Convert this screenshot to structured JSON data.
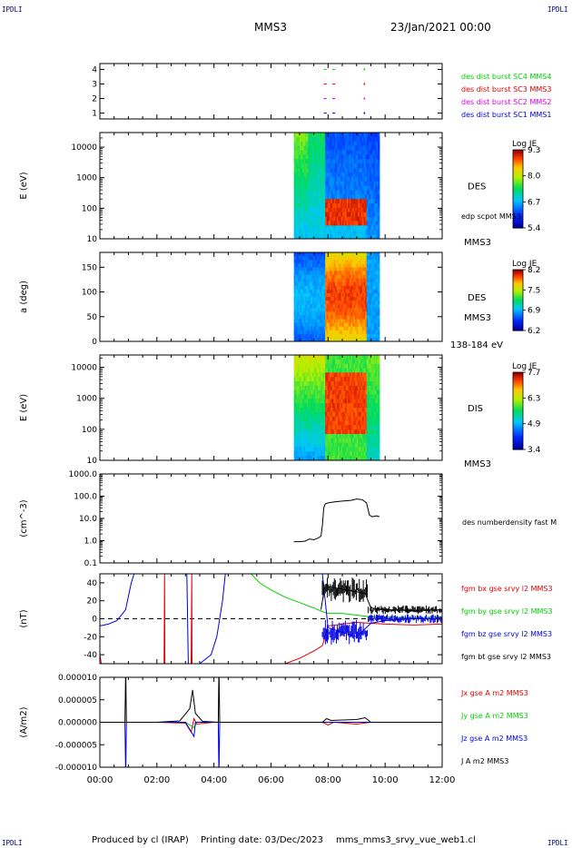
{
  "header": {
    "corner_label": "IPDLI",
    "mission": "MMS3",
    "date": "23/Jan/2021 00:00"
  },
  "footer": {
    "producer": "Produced by cl (IRAP)",
    "printing_date": "Printing date: 03/Dec/2023",
    "filename": "mms_mms3_srvy_vue_web1.cl"
  },
  "time_axis": {
    "range_hours": [
      0,
      12
    ],
    "tick_labels": [
      "00:00",
      "02:00",
      "04:00",
      "06:00",
      "08:00",
      "10:00",
      "12:00"
    ]
  },
  "colors": {
    "black": "#000000",
    "red": "#e00000",
    "green": "#00d000",
    "blue": "#0000e0",
    "magenta": "#e000e0",
    "navy": "#000080"
  },
  "chart_data": [
    {
      "id": "burst",
      "type": "scatter",
      "ylim": [
        0.6,
        4.4
      ],
      "y_ticks": [
        1,
        2,
        3,
        4
      ],
      "y_tick_labels": [
        "1",
        "2",
        "3",
        "4"
      ],
      "series": [
        {
          "name": "des dist burst SC1 MMS1",
          "color": "#0000e0",
          "y": 1,
          "segments": [
            [
              7.85,
              7.95
            ],
            [
              8.15,
              8.25
            ]
          ],
          "dot": 9.25
        },
        {
          "name": "des dist burst SC2 MMS2",
          "color": "#e000e0",
          "y": 2,
          "segments": [
            [
              7.85,
              7.95
            ],
            [
              8.15,
              8.25
            ]
          ],
          "dot": 9.25
        },
        {
          "name": "des dist burst SC3 MMS3",
          "color": "#e00000",
          "y": 3,
          "segments": [
            [
              7.85,
              7.95
            ],
            [
              8.15,
              8.25
            ]
          ],
          "dot": 9.25
        },
        {
          "name": "des dist burst SC4 MMS4",
          "color": "#00d000",
          "y": 4,
          "segments": [
            [
              7.85,
              7.95
            ],
            [
              8.15,
              8.25
            ]
          ],
          "dot": 9.25
        }
      ]
    },
    {
      "id": "des_energy",
      "type": "heatmap",
      "ylabel": "E (eV)",
      "yscale": "log",
      "ylim": [
        10,
        30000
      ],
      "y_ticks": [
        10,
        100,
        1000,
        10000
      ],
      "y_tick_labels": [
        "10",
        "100",
        "1000",
        "10000"
      ],
      "side_label": "DES",
      "side_label2": "edp scpot MMS3",
      "bottom_label": "MMS3",
      "colorbar": {
        "title": "Log JE",
        "ticks": [
          "9.3",
          "8.0",
          "6.7",
          "5.4"
        ],
        "range": [
          5.4,
          9.3
        ]
      },
      "data_time_range": [
        6.8,
        9.8
      ]
    },
    {
      "id": "des_pitch",
      "type": "heatmap",
      "ylabel": "a (deg)",
      "ylim": [
        0,
        180
      ],
      "y_ticks": [
        0,
        50,
        100,
        150
      ],
      "y_tick_labels": [
        "0",
        "50",
        "100",
        "150"
      ],
      "side_label": "DES",
      "side_label2": "MMS3",
      "bottom_label": "138-184 eV",
      "colorbar": {
        "title": "Log JE",
        "ticks": [
          "8.2",
          "7.5",
          "6.9",
          "6.2"
        ],
        "range": [
          6.2,
          8.2
        ]
      },
      "data_time_range": [
        6.8,
        9.8
      ]
    },
    {
      "id": "dis_energy",
      "type": "heatmap",
      "ylabel": "E (eV)",
      "yscale": "log",
      "ylim": [
        10,
        25000
      ],
      "y_ticks": [
        10,
        100,
        1000,
        10000
      ],
      "y_tick_labels": [
        "10",
        "100",
        "1000",
        "10000"
      ],
      "side_label": "DIS",
      "bottom_label": "MMS3",
      "colorbar": {
        "title": "Log JE",
        "ticks": [
          "7.7",
          "6.3",
          "4.9",
          "3.4"
        ],
        "range": [
          3.4,
          7.7
        ]
      },
      "data_time_range": [
        6.8,
        9.8
      ]
    },
    {
      "id": "density",
      "type": "line",
      "ylabel": "(cm^-3)",
      "yscale": "log",
      "ylim": [
        0.1,
        1000
      ],
      "y_ticks": [
        0.1,
        1,
        10,
        100,
        1000
      ],
      "y_tick_labels": [
        "0.1",
        "1.0",
        "10.0",
        "100.0",
        "1000.0"
      ],
      "series": [
        {
          "name": "des numberdensity fast M",
          "color": "#000000",
          "x": [
            6.8,
            7.0,
            7.2,
            7.35,
            7.5,
            7.65,
            7.75,
            7.8,
            7.85,
            7.9,
            8.0,
            8.2,
            8.5,
            8.8,
            9.0,
            9.2,
            9.35,
            9.45,
            9.55,
            9.7,
            9.8
          ],
          "y": [
            0.9,
            0.9,
            0.95,
            1.2,
            1.1,
            1.3,
            1.6,
            5.0,
            30,
            45,
            50,
            55,
            60,
            65,
            75,
            70,
            50,
            14,
            12,
            13,
            12
          ]
        }
      ]
    },
    {
      "id": "magnetic_field",
      "type": "line",
      "ylabel": "(nT)",
      "ylim": [
        -50,
        50
      ],
      "y_ticks": [
        -40,
        -20,
        0,
        20,
        40
      ],
      "y_tick_labels": [
        "-40",
        "-20",
        "0",
        "20",
        "40"
      ],
      "series": [
        {
          "name": "fgm bx gse srvy l2 MMS3",
          "color": "#e00000",
          "x": [
            0.0,
            0.05,
            2.25,
            2.27,
            2.28,
            3.0,
            3.2,
            3.22,
            3.23,
            3.3,
            6.5,
            7.0,
            7.5,
            7.8,
            8.0,
            8.5,
            9.0,
            9.5,
            10.0,
            11.0,
            12.0
          ],
          "y": [
            -40,
            -50,
            -50,
            50,
            -50,
            -50,
            -50,
            50,
            -50,
            -50,
            -50,
            -44,
            -36,
            -30,
            -8,
            -6,
            -4,
            -5,
            -6,
            -7,
            -6
          ]
        },
        {
          "name": "fgm by gse srvy l2 MMS3",
          "color": "#00d000",
          "x": [
            5.3,
            5.6,
            6.0,
            6.5,
            7.0,
            7.5,
            7.8,
            8.0,
            8.5,
            9.0,
            9.5,
            10.0,
            11.0,
            12.0
          ],
          "y": [
            50,
            40,
            32,
            24,
            18,
            12,
            8,
            6,
            6,
            4,
            2,
            2,
            1,
            2
          ]
        },
        {
          "name": "fgm bz gse srvy l2 MMS3",
          "color": "#0000e0",
          "x": [
            0.0,
            0.3,
            0.6,
            0.9,
            1.1,
            1.2,
            3.05,
            3.1,
            3.15,
            3.2,
            3.5,
            3.9,
            4.1,
            4.3,
            4.4,
            7.8,
            8.0,
            8.5,
            9.0,
            9.5,
            10.0,
            11.0,
            12.0
          ],
          "y": [
            -8,
            -6,
            -2,
            10,
            40,
            50,
            50,
            -50,
            -50,
            -50,
            -50,
            -40,
            -20,
            20,
            50,
            50,
            -10,
            -15,
            -20,
            -5,
            -2,
            0,
            0
          ]
        },
        {
          "name": "fgm bt gse srvy l2 MMS3",
          "color": "#000000",
          "x": [
            7.75,
            7.8,
            7.9,
            8.0,
            8.3,
            8.6,
            9.0,
            9.3,
            9.5,
            10.0,
            11.0,
            12.0
          ],
          "y": [
            10,
            20,
            38,
            36,
            34,
            32,
            30,
            28,
            12,
            10,
            9,
            10
          ]
        }
      ]
    },
    {
      "id": "current_density",
      "type": "line",
      "ylabel": "(A/m2)",
      "ylim": [
        -1e-05,
        1e-05
      ],
      "y_ticks": [
        -1e-05,
        -5e-06,
        0,
        5e-06,
        1e-05
      ],
      "y_tick_labels": [
        "-0.000010",
        "-0.000005",
        "0.000000",
        "0.000005",
        "0.000010"
      ],
      "series": [
        {
          "name": "Jx gse A m2 MMS3",
          "color": "#e00000",
          "x": [
            0.0,
            1.0,
            2.0,
            3.0,
            3.2,
            3.3,
            3.4,
            4.0,
            6.0,
            7.8,
            8.0,
            8.2,
            9.0,
            9.5,
            12.0
          ],
          "y": [
            0,
            0,
            0,
            -2e-07,
            -2.2e-06,
            8e-07,
            -4e-07,
            0,
            0,
            0,
            -6e-07,
            0,
            -4e-07,
            0,
            0
          ]
        },
        {
          "name": "Jy gse A m2 MMS3",
          "color": "#00d000",
          "x": [
            0.0,
            1.0,
            3.0,
            3.3,
            3.4,
            6.0,
            12.0
          ],
          "y": [
            0,
            0,
            0,
            -1.2e-06,
            0,
            0,
            0
          ]
        },
        {
          "name": "Jz gse A m2 MMS3",
          "color": "#0000e0",
          "x": [
            0.0,
            0.88,
            0.9,
            0.91,
            0.93,
            3.0,
            3.3,
            3.35,
            3.4,
            4.15,
            4.17,
            4.18,
            4.2,
            12.0
          ],
          "y": [
            0,
            0,
            -1e-05,
            -1e-05,
            0,
            0,
            -3.2e-06,
            0,
            0,
            0,
            -1e-05,
            -1e-05,
            0,
            0
          ]
        },
        {
          "name": "J A m2 MMS3",
          "color": "#000000",
          "x": [
            0.0,
            0.88,
            0.9,
            0.91,
            0.93,
            2.0,
            2.8,
            3.15,
            3.25,
            3.35,
            3.6,
            4.15,
            4.17,
            4.18,
            4.2,
            7.8,
            7.95,
            8.1,
            9.0,
            9.3,
            9.5,
            12.0
          ],
          "y": [
            0,
            0,
            1e-05,
            1e-05,
            0,
            0,
            3e-07,
            3e-06,
            7.2e-06,
            2e-06,
            2e-07,
            0,
            1e-05,
            1e-05,
            0,
            0,
            8e-07,
            4e-07,
            6e-07,
            1e-06,
            0,
            0
          ]
        }
      ]
    }
  ]
}
